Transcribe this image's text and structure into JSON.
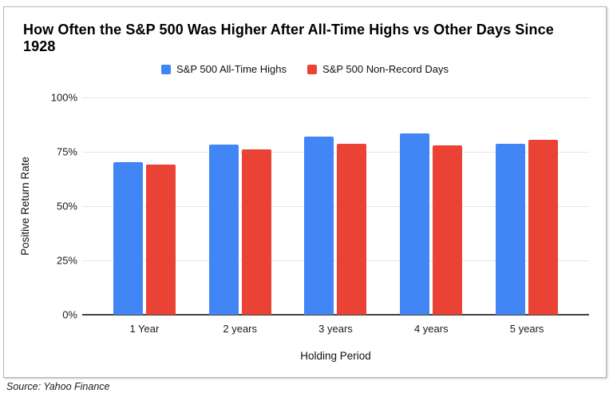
{
  "card": {
    "border_color": "#b9b9b9",
    "background": "#ffffff"
  },
  "source_note": "Source: Yahoo Finance",
  "chart_data": {
    "type": "bar",
    "title": "How Often the S&P 500 Was Higher After All-Time Highs vs Other Days Since 1928",
    "xlabel": "Holding Period",
    "ylabel": "Positive Return Rate",
    "categories": [
      "1 Year",
      "2 years",
      "3 years",
      "4 years",
      "5 years"
    ],
    "series": [
      {
        "name": "S&P 500 All-Time Highs",
        "color": "#4285F4",
        "values": [
          70.4,
          78.3,
          82.1,
          83.6,
          78.6
        ]
      },
      {
        "name": "S&P 500 Non-Record Days",
        "color": "#EA4335",
        "values": [
          69.3,
          76.2,
          78.6,
          77.9,
          80.5
        ]
      }
    ],
    "ylim": [
      0,
      100
    ],
    "yticks": [
      0,
      25,
      50,
      75,
      100
    ],
    "ytick_suffix": "%",
    "grid": true,
    "legend_position": "top",
    "gridline_color": "#e6e6e6",
    "axis_line_color": "#424242"
  }
}
